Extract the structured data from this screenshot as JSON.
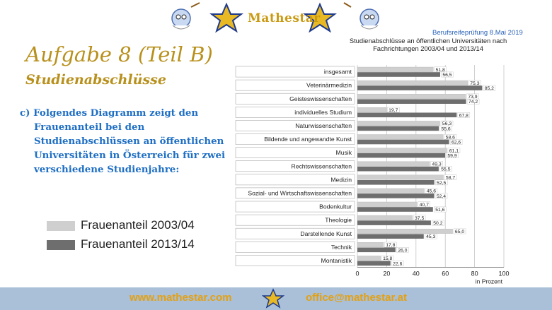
{
  "header": {
    "logo_text": "Mathestar",
    "exam_date": "Berufsreifeprüfung 8.Mai 2019"
  },
  "slide": {
    "title": "Aufgabe 8 (Teil B)",
    "subtitle": "Studienabschlüsse",
    "description_lines": [
      "c) Folgendes Diagramm zeigt den",
      "Frauenanteil bei den",
      "Studienabschlüssen an öffentlichen",
      "Universitäten in Österreich für zwei",
      "verschiedene Studienjahre:"
    ]
  },
  "legend": {
    "items": [
      {
        "label": "Frauenanteil 2003/04",
        "color": "#cfcfcf"
      },
      {
        "label": "Frauenanteil 2013/14",
        "color": "#6e6e6e"
      }
    ]
  },
  "chart_data": {
    "type": "bar",
    "orientation": "horizontal",
    "title": "Studienabschlüsse an öffentlichen Universitäten nach Fachrichtungen 2003/04 und 2013/14",
    "title_lines": [
      "Studienabschlüsse an öffentlichen Universitäten nach",
      "Fachrichtungen 2003/04 und 2013/14"
    ],
    "xlabel": "in Prozent",
    "xlim": [
      0,
      100
    ],
    "xticks": [
      0,
      20,
      40,
      60,
      80,
      100
    ],
    "grid": true,
    "categories": [
      "insgesamt",
      "Veterinärmedizin",
      "Geisteswissenschaften",
      "individuelles Studium",
      "Naturwissenschaften",
      "Bildende und angewandte Kunst",
      "Musik",
      "Rechtswissenschaften",
      "Medizin",
      "Sozial- und Wirtschaftswissenschaften",
      "Bodenkultur",
      "Theologie",
      "Darstellende Kunst",
      "Technik",
      "Montanistik"
    ],
    "series": [
      {
        "name": "Frauenanteil 2003/04",
        "color": "#cfcfcf",
        "values": [
          51.8,
          75.3,
          73.9,
          19.7,
          56.3,
          58.6,
          61.1,
          49.3,
          58.7,
          45.6,
          40.7,
          37.5,
          65.0,
          17.8,
          15.8
        ],
        "labels": [
          "51,8",
          "75,3",
          "73,9",
          "19,7",
          "56,3",
          "58,6",
          "61,1",
          "49,3",
          "58,7",
          "45,6",
          "40,7",
          "37,5",
          "65,0",
          "17,8",
          "15,8"
        ]
      },
      {
        "name": "Frauenanteil 2013/14",
        "color": "#6e6e6e",
        "values": [
          56.5,
          85.2,
          74.2,
          67.8,
          55.6,
          62.6,
          59.9,
          55.5,
          52.5,
          52.4,
          51.6,
          50.2,
          45.3,
          26.0,
          22.6
        ],
        "labels": [
          "56,5",
          "85,2",
          "74,2",
          "67,8",
          "55,6",
          "62,6",
          "59,9",
          "55,5",
          "52,5",
          "52,4",
          "51,6",
          "50,2",
          "45,3",
          "26,0",
          "22,6"
        ]
      }
    ]
  },
  "footer": {
    "website": "www.mathestar.com",
    "email": "office@mathestar.at"
  }
}
